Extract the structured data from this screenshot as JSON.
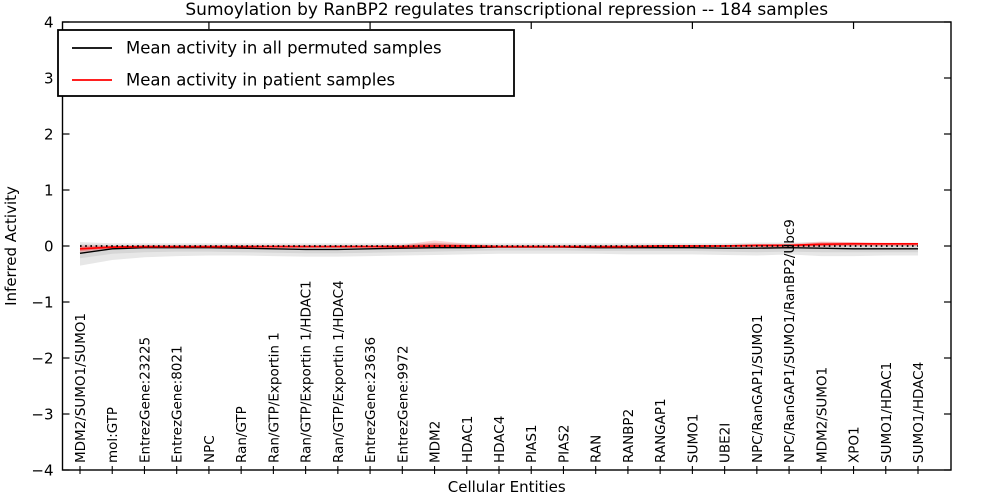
{
  "chart_data": {
    "type": "line",
    "title": "Sumoylation by RanBP2 regulates transcriptional repression -- 184 samples",
    "xlabel": "Cellular Entities",
    "ylabel": "Inferred Activity",
    "ylim": [
      -4,
      4
    ],
    "yticks": [
      -4,
      -3,
      -2,
      -1,
      0,
      1,
      2,
      3,
      4
    ],
    "grid": false,
    "legend_position": "upper left",
    "zero_line": {
      "y": 0,
      "style": "dotted",
      "color": "#000000"
    },
    "categories": [
      "MDM2/SUMO1/SUMO1",
      "mol:GTP",
      "EntrezGene:23225",
      "EntrezGene:8021",
      "NPC",
      "Ran/GTP",
      "Ran/GTP/Exportin 1",
      "Ran/GTP/Exportin 1/HDAC1",
      "Ran/GTP/Exportin 1/HDAC4",
      "EntrezGene:23636",
      "EntrezGene:9972",
      "MDM2",
      "HDAC1",
      "HDAC4",
      "PIAS1",
      "PIAS2",
      "RAN",
      "RANBP2",
      "RANGAP1",
      "SUMO1",
      "UBE2I",
      "NPC/RanGAP1/SUMO1",
      "NPC/RanGAP1/SUMO1/RanBP2/Ubc9",
      "MDM2/SUMO1",
      "XPO1",
      "SUMO1/HDAC1",
      "SUMO1/HDAC4"
    ],
    "series": [
      {
        "name": "Mean activity in all permuted samples",
        "color": "#000000",
        "style": "solid",
        "values": [
          -0.13,
          -0.05,
          -0.03,
          -0.03,
          -0.03,
          -0.04,
          -0.05,
          -0.06,
          -0.06,
          -0.05,
          -0.04,
          -0.03,
          -0.03,
          -0.02,
          -0.02,
          -0.02,
          -0.03,
          -0.03,
          -0.03,
          -0.03,
          -0.04,
          -0.04,
          -0.03,
          -0.04,
          -0.05,
          -0.05,
          -0.05
        ],
        "band_outer": {
          "color": "#e7e7e7",
          "low": [
            -0.35,
            -0.25,
            -0.2,
            -0.18,
            -0.17,
            -0.17,
            -0.18,
            -0.19,
            -0.19,
            -0.18,
            -0.17,
            -0.16,
            -0.15,
            -0.14,
            -0.14,
            -0.14,
            -0.14,
            -0.15,
            -0.15,
            -0.15,
            -0.16,
            -0.17,
            -0.15,
            -0.18,
            -0.18,
            -0.17,
            -0.17
          ],
          "high": [
            0.07,
            0.05,
            0.05,
            0.05,
            0.05,
            0.05,
            0.05,
            0.05,
            0.05,
            0.05,
            0.05,
            0.06,
            0.05,
            0.05,
            0.05,
            0.05,
            0.05,
            0.05,
            0.05,
            0.05,
            0.05,
            0.06,
            0.06,
            0.07,
            0.06,
            0.05,
            0.05
          ]
        },
        "band_inner": {
          "color": "#d6d6d6",
          "low": [
            -0.22,
            -0.14,
            -0.11,
            -0.1,
            -0.1,
            -0.11,
            -0.12,
            -0.13,
            -0.13,
            -0.12,
            -0.11,
            -0.1,
            -0.09,
            -0.08,
            -0.08,
            -0.08,
            -0.09,
            -0.09,
            -0.09,
            -0.09,
            -0.1,
            -0.11,
            -0.1,
            -0.11,
            -0.11,
            -0.11,
            -0.11
          ],
          "high": [
            0.03,
            0.02,
            0.02,
            0.02,
            0.02,
            0.02,
            0.02,
            0.02,
            0.02,
            0.02,
            0.02,
            0.03,
            0.02,
            0.02,
            0.02,
            0.02,
            0.02,
            0.02,
            0.02,
            0.02,
            0.02,
            0.03,
            0.03,
            0.03,
            0.02,
            0.02,
            0.02
          ]
        }
      },
      {
        "name": "Mean activity in patient samples",
        "color": "#ff0000",
        "style": "solid",
        "values": [
          -0.05,
          -0.02,
          -0.01,
          -0.01,
          -0.01,
          -0.01,
          -0.01,
          -0.01,
          -0.01,
          -0.01,
          -0.01,
          0.0,
          0.0,
          -0.01,
          -0.01,
          -0.01,
          -0.01,
          -0.01,
          0.0,
          0.0,
          0.0,
          0.01,
          0.01,
          0.03,
          0.04,
          0.04,
          0.04
        ],
        "band_outer": {
          "color": "rgba(255,0,0,0.16)",
          "low": [
            -0.12,
            -0.05,
            -0.03,
            -0.03,
            -0.03,
            -0.03,
            -0.03,
            -0.03,
            -0.03,
            -0.03,
            -0.03,
            -0.04,
            -0.03,
            -0.03,
            -0.03,
            -0.03,
            -0.03,
            -0.03,
            -0.02,
            -0.02,
            -0.02,
            -0.02,
            -0.02,
            -0.01,
            0.0,
            0.0,
            0.0
          ],
          "high": [
            0.01,
            0.01,
            0.01,
            0.01,
            0.01,
            0.01,
            0.01,
            0.01,
            0.01,
            0.01,
            0.02,
            0.1,
            0.04,
            0.01,
            0.01,
            0.01,
            0.01,
            0.01,
            0.01,
            0.01,
            0.02,
            0.03,
            0.04,
            0.08,
            0.07,
            0.06,
            0.06
          ]
        },
        "band_inner": {
          "color": "rgba(255,0,0,0.30)",
          "low": [
            -0.09,
            -0.04,
            -0.02,
            -0.02,
            -0.02,
            -0.02,
            -0.02,
            -0.02,
            -0.02,
            -0.02,
            -0.02,
            -0.02,
            -0.02,
            -0.02,
            -0.02,
            -0.02,
            -0.02,
            -0.02,
            -0.01,
            -0.01,
            -0.01,
            -0.01,
            -0.01,
            0.0,
            0.01,
            0.01,
            0.01
          ],
          "high": [
            -0.01,
            0.0,
            0.0,
            0.0,
            0.0,
            0.0,
            0.0,
            0.0,
            0.0,
            0.0,
            0.01,
            0.05,
            0.02,
            0.0,
            0.0,
            0.0,
            0.0,
            0.0,
            0.01,
            0.01,
            0.01,
            0.02,
            0.02,
            0.06,
            0.06,
            0.05,
            0.05
          ]
        }
      }
    ],
    "legend": [
      {
        "label": "Mean activity in all permuted samples",
        "color": "#000000"
      },
      {
        "label": "Mean activity in patient samples",
        "color": "#ff0000"
      }
    ]
  }
}
